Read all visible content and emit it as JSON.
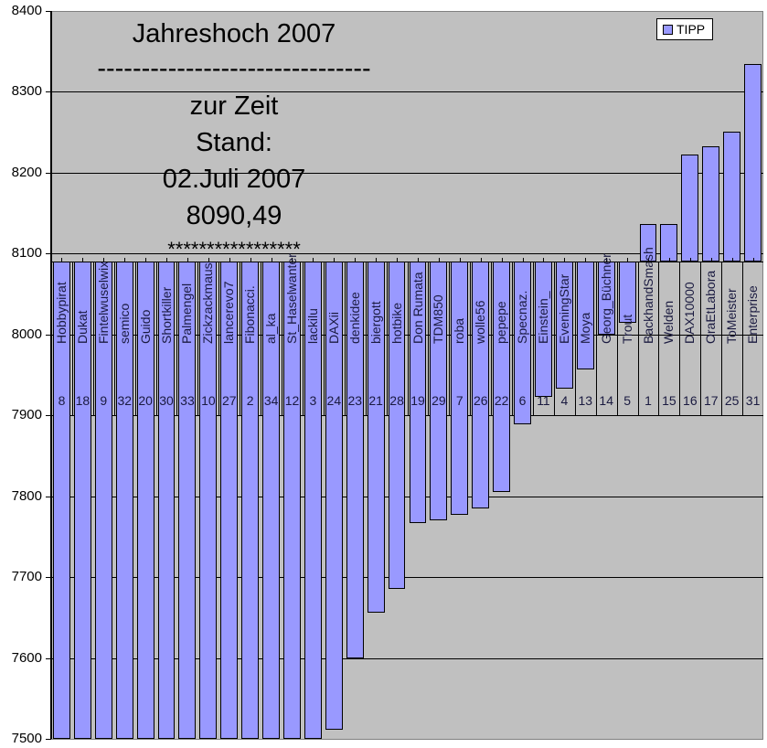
{
  "chart_data": {
    "type": "bar",
    "title": "Jahreshoch 2007",
    "annotation": {
      "lines": [
        "Jahreshoch 2007",
        "-------------------------------",
        "zur Zeit",
        "Stand:",
        "02.Juli 2007",
        "8090,49",
        "*****************"
      ]
    },
    "xlabel": "",
    "ylabel": "",
    "ylim": [
      7500,
      8400
    ],
    "yticks": [
      8400,
      8300,
      8200,
      8100,
      8000,
      7900,
      7800,
      7700,
      7600,
      7500
    ],
    "baseline": 8090.49,
    "grid": true,
    "legend": {
      "position": "top-right",
      "entries": [
        "TIPP"
      ]
    },
    "series": [
      {
        "name": "TIPP",
        "color": "#9999ff",
        "values": [
          7500,
          7500,
          7500,
          7500,
          7500,
          7500,
          7500,
          7500,
          7500,
          7500,
          7500,
          7500,
          7500,
          7511,
          7600,
          7656,
          7685,
          7767,
          7770,
          7777,
          7785,
          7805,
          7889,
          7923,
          7933,
          7957,
          8000,
          8015,
          8136,
          8137,
          8222,
          8233,
          8251,
          8334
        ]
      }
    ],
    "categories": [
      "Hobbypirat",
      "Dukat",
      "Fintelwuselwix",
      "semico",
      "Guido",
      "Shortkiller",
      "Palmengel",
      "Zickzackmaus",
      "lancerevo7",
      "Fibonacci.",
      "al_ka",
      "St_Haselwanter",
      "lackilu",
      "DAXii",
      "denkidee",
      "biergott",
      "hotbike",
      "Don Rumata",
      "TDM850",
      "roba",
      "wolle56",
      "pepepe",
      "Specnaz.",
      "Einstein_",
      "EveningStar",
      "Moya",
      "Georg_Büchner",
      "Trout",
      "BackhandSmash",
      "Welden",
      "DAX10000",
      "OraEtLabora",
      "ToMeister",
      "Enterprise"
    ],
    "ranks": [
      "8",
      "18",
      "9",
      "32",
      "20",
      "30",
      "33",
      "10",
      "27",
      "2",
      "34",
      "12",
      "3",
      "24",
      "23",
      "21",
      "28",
      "19",
      "29",
      "7",
      "26",
      "22",
      "6",
      "11",
      "4",
      "13",
      "14",
      "5",
      "1",
      "15",
      "16",
      "17",
      "25",
      "31"
    ]
  },
  "colors": {
    "plot_bg": "#c0c0c0",
    "bar": "#9999ff",
    "grid": "#000000"
  }
}
